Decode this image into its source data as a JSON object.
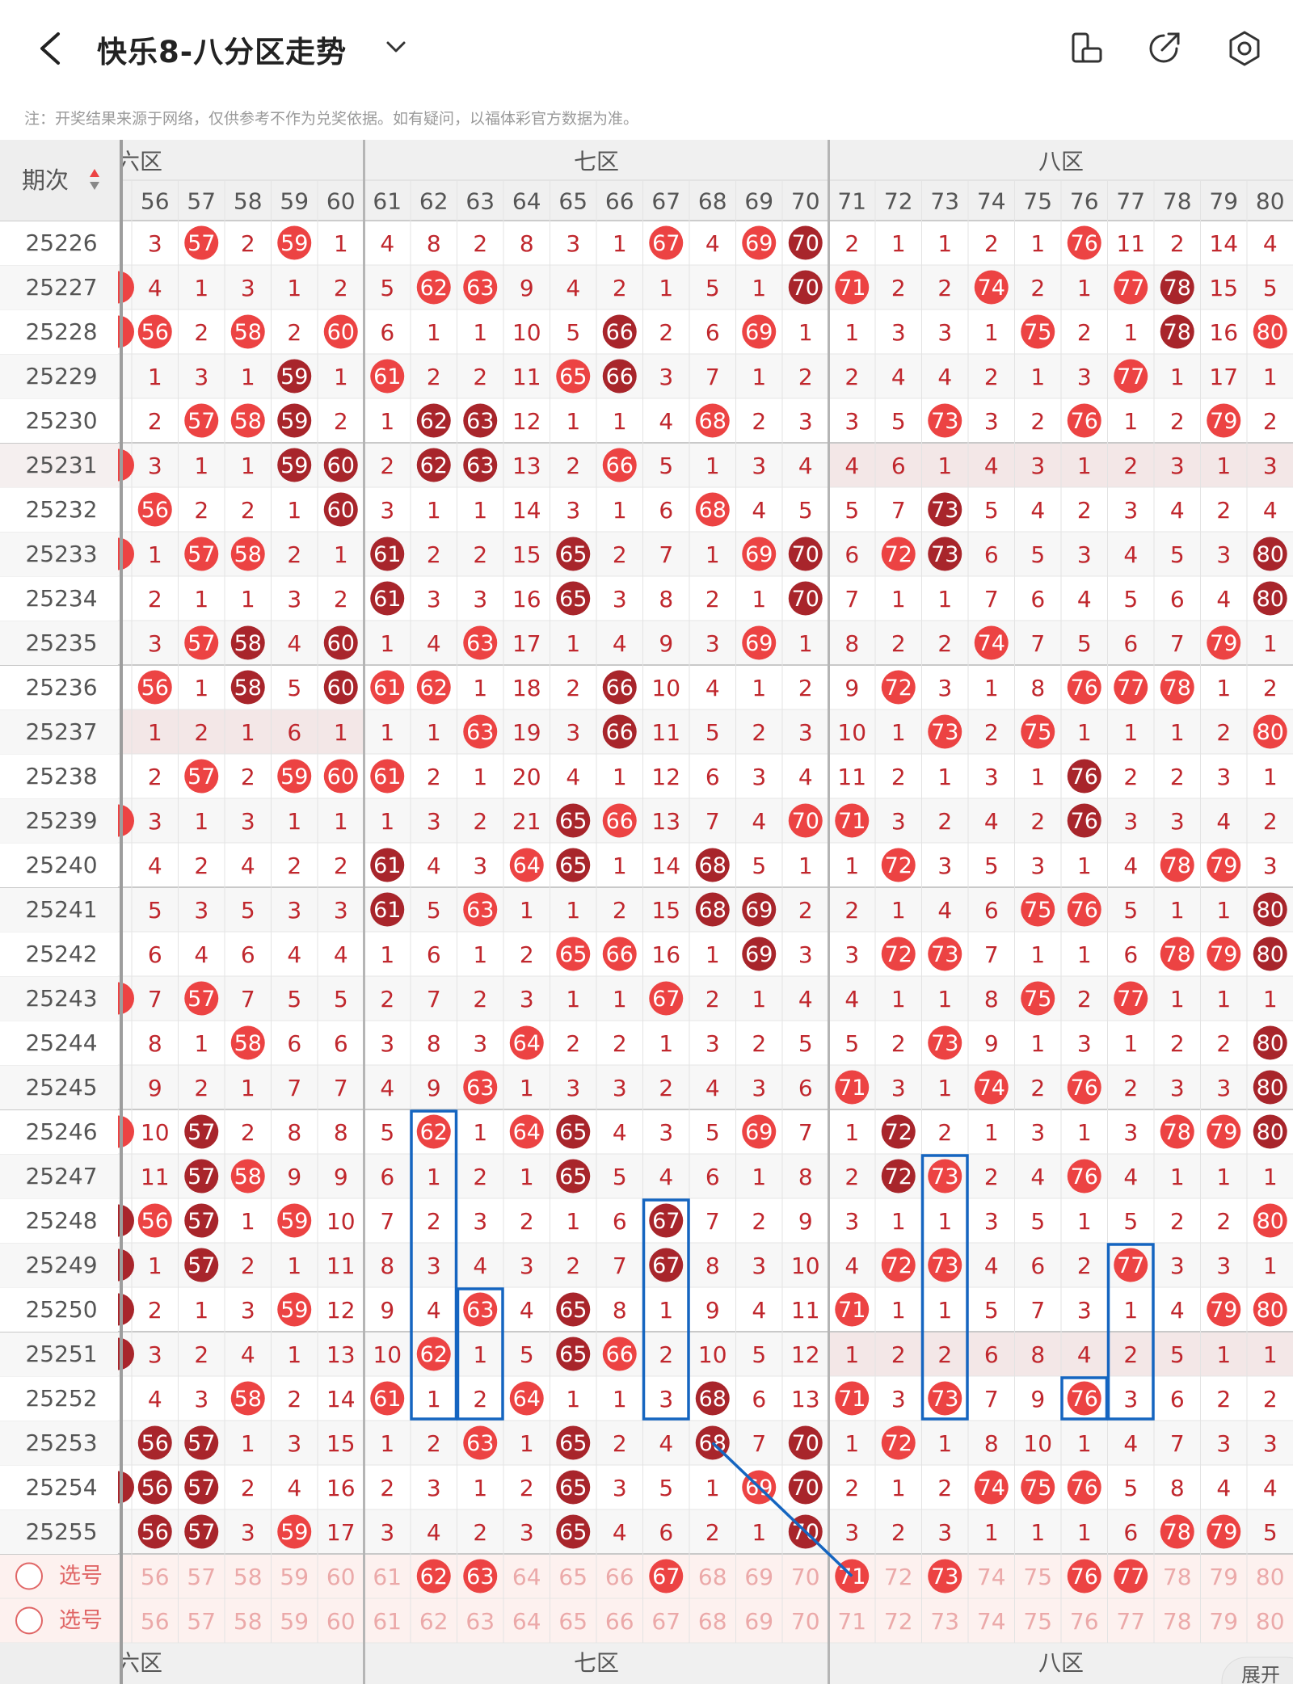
{
  "header": {
    "title": "快乐8-八分区走势",
    "note": "注：开奖结果来源于网络，仅供参考不作为兑奖依据。如有疑问，以福体彩官方数据为准。"
  },
  "table": {
    "period_header": "期次",
    "zones": [
      {
        "label": "六区",
        "shown": "六区"
      },
      {
        "label": "七区"
      },
      {
        "label": "八区"
      }
    ],
    "columns": [
      56,
      57,
      58,
      59,
      60,
      61,
      62,
      63,
      64,
      65,
      66,
      67,
      68,
      69,
      70,
      71,
      72,
      73,
      74,
      75,
      76,
      77,
      78,
      79,
      80
    ],
    "rows": [
      {
        "period": "25226",
        "v": [
          "3",
          "57",
          "2",
          "59",
          "1",
          "4",
          "8",
          "2",
          "8",
          "3",
          "1",
          "67",
          "4",
          "69",
          "70",
          "2",
          "1",
          "1",
          "2",
          "1",
          "76",
          "11",
          "2",
          "14",
          "4"
        ]
      },
      {
        "period": "25227",
        "v": [
          "4",
          "1",
          "3",
          "1",
          "2",
          "5",
          "62",
          "63",
          "9",
          "4",
          "2",
          "1",
          "5",
          "1",
          "70",
          "71",
          "2",
          "2",
          "74",
          "2",
          "1",
          "77",
          "78",
          "15",
          "5"
        ]
      },
      {
        "period": "25228",
        "v": [
          "56",
          "2",
          "58",
          "2",
          "60",
          "6",
          "1",
          "1",
          "10",
          "5",
          "66",
          "2",
          "6",
          "69",
          "1",
          "1",
          "3",
          "3",
          "1",
          "75",
          "2",
          "1",
          "78",
          "16",
          "80"
        ]
      },
      {
        "period": "25229",
        "v": [
          "1",
          "3",
          "1",
          "59",
          "1",
          "61",
          "2",
          "2",
          "11",
          "65",
          "66",
          "3",
          "7",
          "1",
          "2",
          "2",
          "4",
          "4",
          "2",
          "1",
          "3",
          "77",
          "1",
          "17",
          "1"
        ]
      },
      {
        "period": "25230",
        "v": [
          "2",
          "57",
          "58",
          "59",
          "2",
          "1",
          "62",
          "63",
          "12",
          "1",
          "1",
          "4",
          "68",
          "2",
          "3",
          "3",
          "5",
          "73",
          "3",
          "2",
          "76",
          "1",
          "2",
          "79",
          "2"
        ]
      },
      {
        "period": "25231",
        "v": [
          "3",
          "1",
          "1",
          "59",
          "60",
          "2",
          "62",
          "63",
          "13",
          "2",
          "66",
          "5",
          "1",
          "3",
          "4",
          "4",
          "6",
          "1",
          "4",
          "3",
          "1",
          "2",
          "3",
          "1",
          "3"
        ]
      },
      {
        "period": "25232",
        "v": [
          "56",
          "2",
          "2",
          "1",
          "60",
          "3",
          "1",
          "1",
          "14",
          "3",
          "1",
          "6",
          "68",
          "4",
          "5",
          "5",
          "7",
          "73",
          "5",
          "4",
          "2",
          "3",
          "4",
          "2",
          "4"
        ]
      },
      {
        "period": "25233",
        "v": [
          "1",
          "57",
          "58",
          "2",
          "1",
          "61",
          "2",
          "2",
          "15",
          "65",
          "2",
          "7",
          "1",
          "69",
          "70",
          "6",
          "72",
          "73",
          "6",
          "5",
          "3",
          "4",
          "5",
          "3",
          "80"
        ]
      },
      {
        "period": "25234",
        "v": [
          "2",
          "1",
          "1",
          "3",
          "2",
          "61",
          "3",
          "3",
          "16",
          "65",
          "3",
          "8",
          "2",
          "1",
          "70",
          "7",
          "1",
          "1",
          "7",
          "6",
          "4",
          "5",
          "6",
          "4",
          "80"
        ]
      },
      {
        "period": "25235",
        "v": [
          "3",
          "57",
          "58",
          "4",
          "60",
          "1",
          "4",
          "63",
          "17",
          "1",
          "4",
          "9",
          "3",
          "69",
          "1",
          "8",
          "2",
          "2",
          "74",
          "7",
          "5",
          "6",
          "7",
          "79",
          "1"
        ]
      },
      {
        "period": "25236",
        "v": [
          "56",
          "1",
          "58",
          "5",
          "60",
          "61",
          "62",
          "1",
          "18",
          "2",
          "66",
          "10",
          "4",
          "1",
          "2",
          "9",
          "72",
          "3",
          "1",
          "8",
          "76",
          "77",
          "78",
          "1",
          "2"
        ]
      },
      {
        "period": "25237",
        "v": [
          "1",
          "2",
          "1",
          "6",
          "1",
          "1",
          "1",
          "63",
          "19",
          "3",
          "66",
          "11",
          "5",
          "2",
          "3",
          "10",
          "1",
          "73",
          "2",
          "75",
          "1",
          "1",
          "1",
          "2",
          "80"
        ]
      },
      {
        "period": "25238",
        "v": [
          "2",
          "57",
          "2",
          "59",
          "60",
          "61",
          "2",
          "1",
          "20",
          "4",
          "1",
          "12",
          "6",
          "3",
          "4",
          "11",
          "2",
          "1",
          "3",
          "1",
          "76",
          "2",
          "2",
          "3",
          "1"
        ]
      },
      {
        "period": "25239",
        "v": [
          "3",
          "1",
          "3",
          "1",
          "1",
          "1",
          "3",
          "2",
          "21",
          "65",
          "66",
          "13",
          "7",
          "4",
          "70",
          "71",
          "3",
          "2",
          "4",
          "2",
          "76",
          "3",
          "3",
          "4",
          "2"
        ]
      },
      {
        "period": "25240",
        "v": [
          "4",
          "2",
          "4",
          "2",
          "2",
          "61",
          "4",
          "3",
          "64",
          "65",
          "1",
          "14",
          "68",
          "5",
          "1",
          "1",
          "72",
          "3",
          "5",
          "3",
          "1",
          "4",
          "78",
          "79",
          "3"
        ]
      },
      {
        "period": "25241",
        "v": [
          "5",
          "3",
          "5",
          "3",
          "3",
          "61",
          "5",
          "63",
          "1",
          "1",
          "2",
          "15",
          "68",
          "69",
          "2",
          "2",
          "1",
          "4",
          "6",
          "75",
          "76",
          "5",
          "1",
          "1",
          "80"
        ]
      },
      {
        "period": "25242",
        "v": [
          "6",
          "4",
          "6",
          "4",
          "4",
          "1",
          "6",
          "1",
          "2",
          "65",
          "66",
          "16",
          "1",
          "69",
          "3",
          "3",
          "72",
          "73",
          "7",
          "1",
          "1",
          "6",
          "78",
          "79",
          "80"
        ]
      },
      {
        "period": "25243",
        "v": [
          "7",
          "57",
          "7",
          "5",
          "5",
          "2",
          "7",
          "2",
          "3",
          "1",
          "1",
          "67",
          "2",
          "1",
          "4",
          "4",
          "1",
          "1",
          "8",
          "75",
          "2",
          "77",
          "1",
          "1",
          "1"
        ]
      },
      {
        "period": "25244",
        "v": [
          "8",
          "1",
          "58",
          "6",
          "6",
          "3",
          "8",
          "3",
          "64",
          "2",
          "2",
          "1",
          "3",
          "2",
          "5",
          "5",
          "2",
          "73",
          "9",
          "1",
          "3",
          "1",
          "2",
          "2",
          "80"
        ]
      },
      {
        "period": "25245",
        "v": [
          "9",
          "2",
          "1",
          "7",
          "7",
          "4",
          "9",
          "63",
          "1",
          "3",
          "3",
          "2",
          "4",
          "3",
          "6",
          "71",
          "3",
          "1",
          "74",
          "2",
          "76",
          "2",
          "3",
          "3",
          "80"
        ]
      },
      {
        "period": "25246",
        "v": [
          "10",
          "57",
          "2",
          "8",
          "8",
          "5",
          "62",
          "1",
          "64",
          "65",
          "4",
          "3",
          "5",
          "69",
          "7",
          "1",
          "72",
          "2",
          "1",
          "3",
          "1",
          "3",
          "78",
          "79",
          "80"
        ]
      },
      {
        "period": "25247",
        "v": [
          "11",
          "57",
          "58",
          "9",
          "9",
          "6",
          "1",
          "2",
          "1",
          "65",
          "5",
          "4",
          "6",
          "1",
          "8",
          "2",
          "72",
          "73",
          "2",
          "4",
          "76",
          "4",
          "1",
          "1",
          "1"
        ]
      },
      {
        "period": "25248",
        "v": [
          "56",
          "57",
          "1",
          "59",
          "10",
          "7",
          "2",
          "3",
          "2",
          "1",
          "6",
          "67",
          "7",
          "2",
          "9",
          "3",
          "1",
          "1",
          "3",
          "5",
          "1",
          "5",
          "2",
          "2",
          "80"
        ]
      },
      {
        "period": "25249",
        "v": [
          "1",
          "57",
          "2",
          "1",
          "11",
          "8",
          "3",
          "4",
          "3",
          "2",
          "7",
          "67",
          "8",
          "3",
          "10",
          "4",
          "72",
          "73",
          "4",
          "6",
          "2",
          "77",
          "3",
          "3",
          "1"
        ]
      },
      {
        "period": "25250",
        "v": [
          "2",
          "1",
          "3",
          "59",
          "12",
          "9",
          "4",
          "63",
          "4",
          "65",
          "8",
          "1",
          "9",
          "4",
          "11",
          "71",
          "1",
          "1",
          "5",
          "7",
          "3",
          "1",
          "4",
          "79",
          "80"
        ]
      },
      {
        "period": "25251",
        "v": [
          "3",
          "2",
          "4",
          "1",
          "13",
          "10",
          "62",
          "1",
          "5",
          "65",
          "66",
          "2",
          "10",
          "5",
          "12",
          "1",
          "2",
          "2",
          "6",
          "8",
          "4",
          "2",
          "5",
          "1",
          "1"
        ]
      },
      {
        "period": "25252",
        "v": [
          "4",
          "3",
          "58",
          "2",
          "14",
          "61",
          "1",
          "2",
          "64",
          "1",
          "1",
          "3",
          "68",
          "6",
          "13",
          "71",
          "3",
          "73",
          "7",
          "9",
          "76",
          "3",
          "6",
          "2",
          "2"
        ]
      },
      {
        "period": "25253",
        "v": [
          "56",
          "57",
          "1",
          "3",
          "15",
          "1",
          "2",
          "63",
          "1",
          "65",
          "2",
          "4",
          "68",
          "7",
          "70",
          "1",
          "72",
          "1",
          "8",
          "10",
          "1",
          "4",
          "7",
          "3",
          "3"
        ]
      },
      {
        "period": "25254",
        "v": [
          "56",
          "57",
          "2",
          "4",
          "16",
          "2",
          "3",
          "1",
          "2",
          "65",
          "3",
          "5",
          "1",
          "69",
          "70",
          "2",
          "1",
          "2",
          "74",
          "75",
          "76",
          "5",
          "8",
          "4",
          "4"
        ]
      },
      {
        "period": "25255",
        "v": [
          "56",
          "57",
          "3",
          "59",
          "17",
          "3",
          "4",
          "2",
          "3",
          "65",
          "4",
          "6",
          "2",
          "1",
          "70",
          "3",
          "2",
          "3",
          "1",
          "1",
          "1",
          "6",
          "78",
          "79",
          "5"
        ]
      }
    ],
    "select_label": "选号",
    "select_rows": [
      {
        "label": "选号",
        "picked": [
          62,
          63,
          67,
          71,
          73,
          76,
          77
        ]
      },
      {
        "label": "选号",
        "picked": []
      }
    ],
    "expand_label": "展开"
  },
  "colors": {
    "red_ball": "#ec4343",
    "dark_ball": "#a8252b",
    "text_red": "#c0272d",
    "highlight_box": "#1565c0",
    "zone_bg": "#f0f0f0"
  }
}
